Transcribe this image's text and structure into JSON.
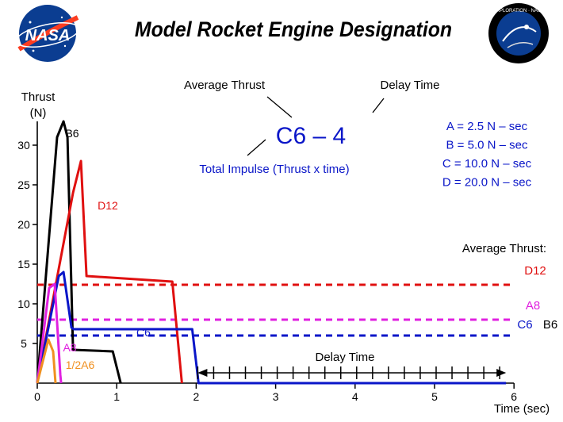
{
  "title": "Model Rocket Engine Designation",
  "logos": {
    "left": "NASA",
    "right": "EXPLORATION · NASA"
  },
  "designation": {
    "code": "C6 – 4",
    "average_thrust_label": "Average Thrust",
    "delay_time_label": "Delay Time",
    "total_impulse_label": "Total Impulse  (Thrust  x  time)"
  },
  "impulse_classes": [
    {
      "text": "A = 2.5  N – sec"
    },
    {
      "text": "B = 5.0  N – sec"
    },
    {
      "text": "C = 10.0  N – sec"
    },
    {
      "text": "D = 20.0  N – sec"
    }
  ],
  "chart_data": {
    "type": "line",
    "ylabel_line1": "Thrust",
    "ylabel_line2": "(N)",
    "xlabel": "Time (sec)",
    "xlim": [
      0,
      6
    ],
    "ylim": [
      0,
      30
    ],
    "x_ticks": [
      "0",
      "1",
      "2",
      "3",
      "4",
      "5",
      "6"
    ],
    "y_ticks": [
      "5",
      "10",
      "15",
      "20",
      "25",
      "30"
    ],
    "avg_thrust_title": "Average Thrust:",
    "delay_label": "Delay Time",
    "delay_range": [
      2.0,
      5.9
    ],
    "series": [
      {
        "name": "B6",
        "color": "#000000",
        "x": [
          0,
          0.25,
          0.33,
          0.38,
          0.45,
          0.95,
          1.05
        ],
        "y": [
          0,
          31,
          33,
          31,
          4.2,
          4.0,
          0
        ]
      },
      {
        "name": "D12",
        "color": "#e01010",
        "x": [
          0,
          0.45,
          0.55,
          0.62,
          1.7,
          1.82
        ],
        "y": [
          0,
          24,
          28,
          13.5,
          12.8,
          0
        ]
      },
      {
        "name": "C6",
        "color": "#0a16c8",
        "x": [
          0,
          0.27,
          0.33,
          0.43,
          0.46,
          1.95,
          2.03,
          5.9
        ],
        "y": [
          0,
          13.5,
          14,
          7,
          6.8,
          6.8,
          0,
          0
        ]
      },
      {
        "name": "A8",
        "color": "#e020e0",
        "x": [
          0,
          0.15,
          0.22,
          0.29,
          0.3
        ],
        "y": [
          0,
          12,
          12.5,
          1,
          0
        ]
      },
      {
        "name": "1/2A6",
        "color": "#f09020",
        "x": [
          0,
          0.14,
          0.2,
          0.23
        ],
        "y": [
          0,
          5.5,
          4,
          0
        ]
      }
    ],
    "averages": [
      {
        "name": "D12",
        "value": 12.4,
        "color": "#e01010",
        "label": "D12"
      },
      {
        "name": "A8",
        "value": 8.0,
        "color": "#e020e0",
        "label": "A8"
      },
      {
        "name": "C6 B6",
        "value": 6.0,
        "color": "#0a16c8",
        "label": "C6",
        "label2": "B6"
      }
    ]
  }
}
